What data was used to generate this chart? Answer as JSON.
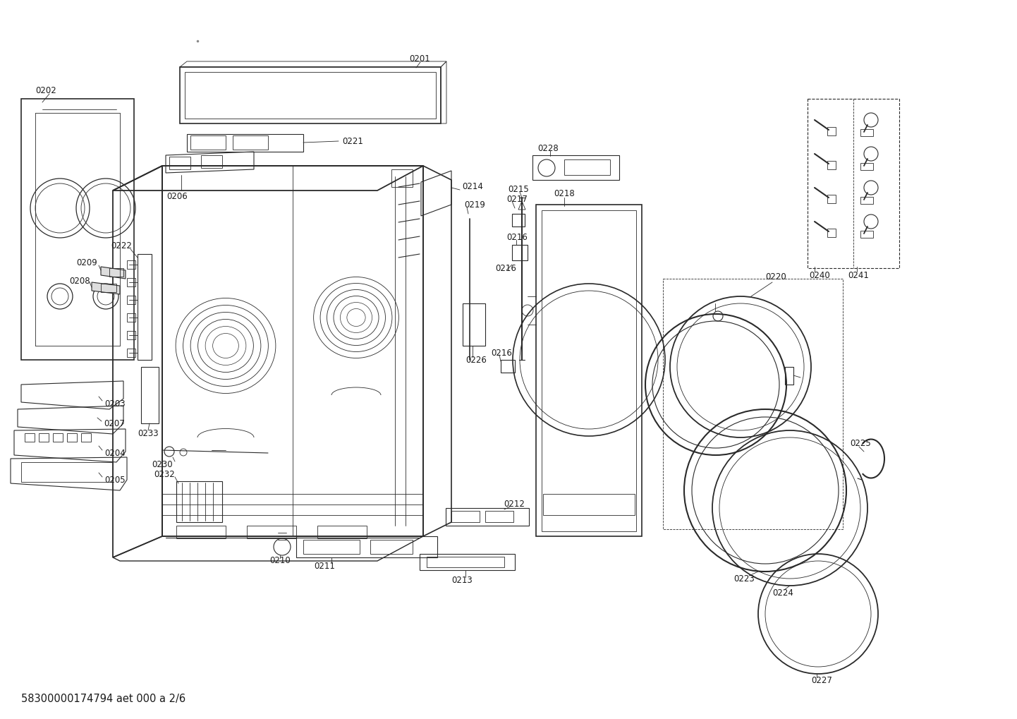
{
  "footer": "58300000174794 aet 000 a 2/6",
  "bg_color": "#ffffff",
  "lc": "#2a2a2a"
}
